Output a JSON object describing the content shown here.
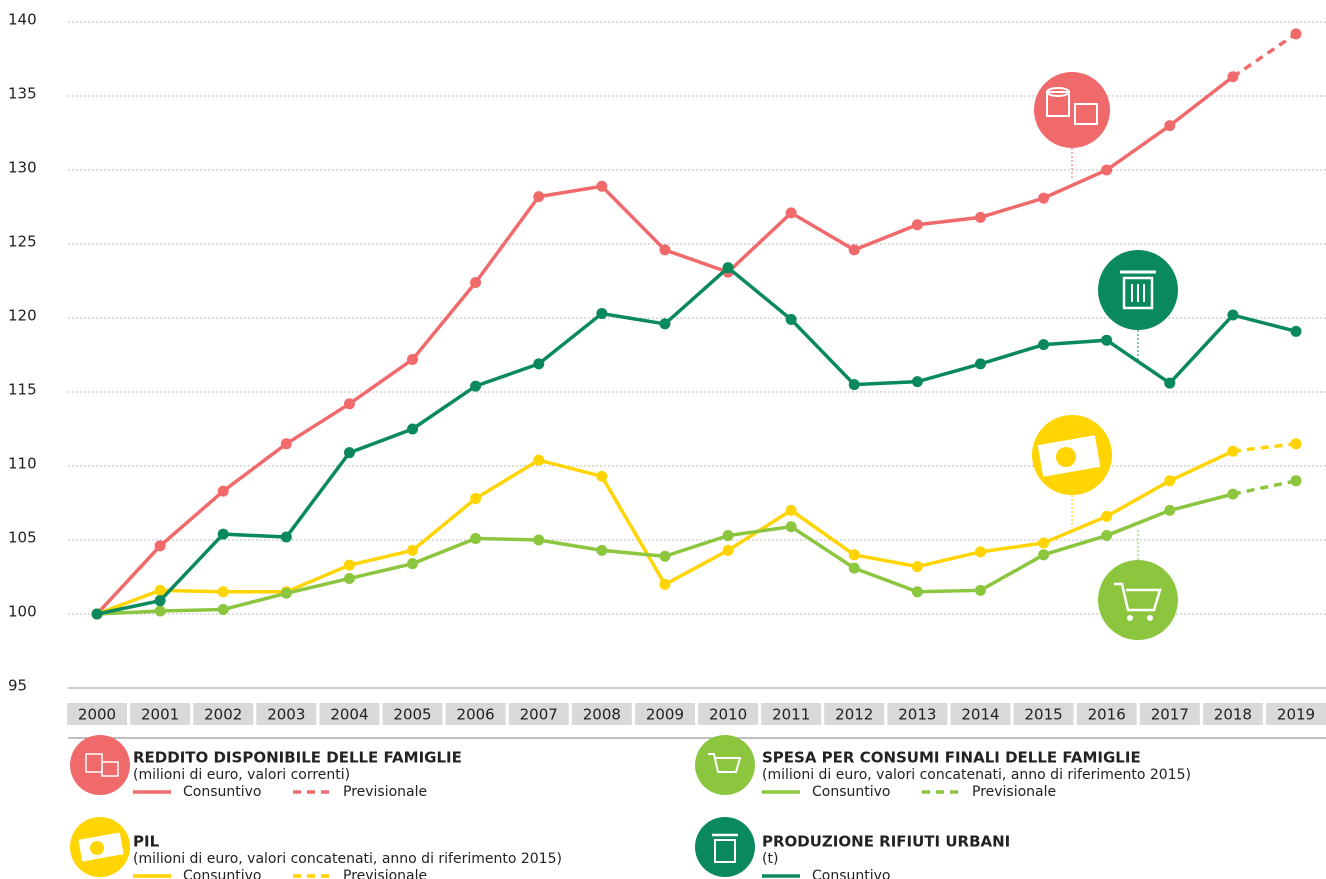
{
  "chart_data": {
    "type": "line",
    "categories": [
      "2000",
      "2001",
      "2002",
      "2003",
      "2004",
      "2005",
      "2006",
      "2007",
      "2008",
      "2009",
      "2010",
      "2011",
      "2012",
      "2013",
      "2014",
      "2015",
      "2016",
      "2017",
      "2018",
      "2019"
    ],
    "ylim": [
      95,
      140
    ],
    "yticks": [
      95,
      100,
      105,
      110,
      115,
      120,
      125,
      130,
      135,
      140
    ],
    "grid": true,
    "series": [
      {
        "name": "REDDITO DISPONIBILE DELLE FAMIGLIE",
        "subtitle": "(milioni di euro, valori correnti)",
        "color": "#f06a6b",
        "entries": [
          "Consuntivo",
          "Previsionale"
        ],
        "values": [
          100,
          104.6,
          108.3,
          111.5,
          114.2,
          117.2,
          122.4,
          128.2,
          128.9,
          124.6,
          123.1,
          127.1,
          124.6,
          126.3,
          126.8,
          128.1,
          130.0,
          133.0,
          136.3,
          null
        ],
        "forecast": [
          null,
          null,
          null,
          null,
          null,
          null,
          null,
          null,
          null,
          null,
          null,
          null,
          null,
          null,
          null,
          null,
          null,
          null,
          136.3,
          139.2
        ]
      },
      {
        "name": "PIL",
        "subtitle": "(milioni di euro, valori concatenati, anno di riferimento 2015)",
        "color": "#ffd400",
        "entries": [
          "Consuntivo",
          "Previsionale"
        ],
        "values": [
          100,
          101.6,
          101.5,
          101.5,
          103.3,
          104.3,
          107.8,
          110.4,
          109.3,
          102.0,
          104.3,
          107.0,
          104.0,
          103.2,
          104.2,
          104.8,
          106.6,
          109.0,
          111.0,
          null
        ],
        "forecast": [
          null,
          null,
          null,
          null,
          null,
          null,
          null,
          null,
          null,
          null,
          null,
          null,
          null,
          null,
          null,
          null,
          null,
          null,
          111.0,
          111.5
        ]
      },
      {
        "name": "SPESA PER CONSUMI FINALI DELLE FAMIGLIE",
        "subtitle": "(milioni di euro, valori concatenati, anno di riferimento 2015)",
        "color": "#8cc63f",
        "entries": [
          "Consuntivo",
          "Previsionale"
        ],
        "values": [
          100,
          100.2,
          100.3,
          101.4,
          102.4,
          103.4,
          105.1,
          105.0,
          104.3,
          103.9,
          105.3,
          105.9,
          103.1,
          101.5,
          101.6,
          104.0,
          105.3,
          107.0,
          108.1,
          null
        ],
        "forecast": [
          null,
          null,
          null,
          null,
          null,
          null,
          null,
          null,
          null,
          null,
          null,
          null,
          null,
          null,
          null,
          null,
          null,
          null,
          108.1,
          109.0
        ]
      },
      {
        "name": "PRODUZIONE RIFIUTI URBANI",
        "subtitle": "(t)",
        "color": "#0a8a5c",
        "entries": [
          "Consuntivo"
        ],
        "values": [
          100,
          100.9,
          105.4,
          105.2,
          110.9,
          112.5,
          115.4,
          116.9,
          120.3,
          119.6,
          123.4,
          119.9,
          115.5,
          115.7,
          116.9,
          118.2,
          118.5,
          115.6,
          120.2,
          119.1
        ]
      }
    ]
  }
}
